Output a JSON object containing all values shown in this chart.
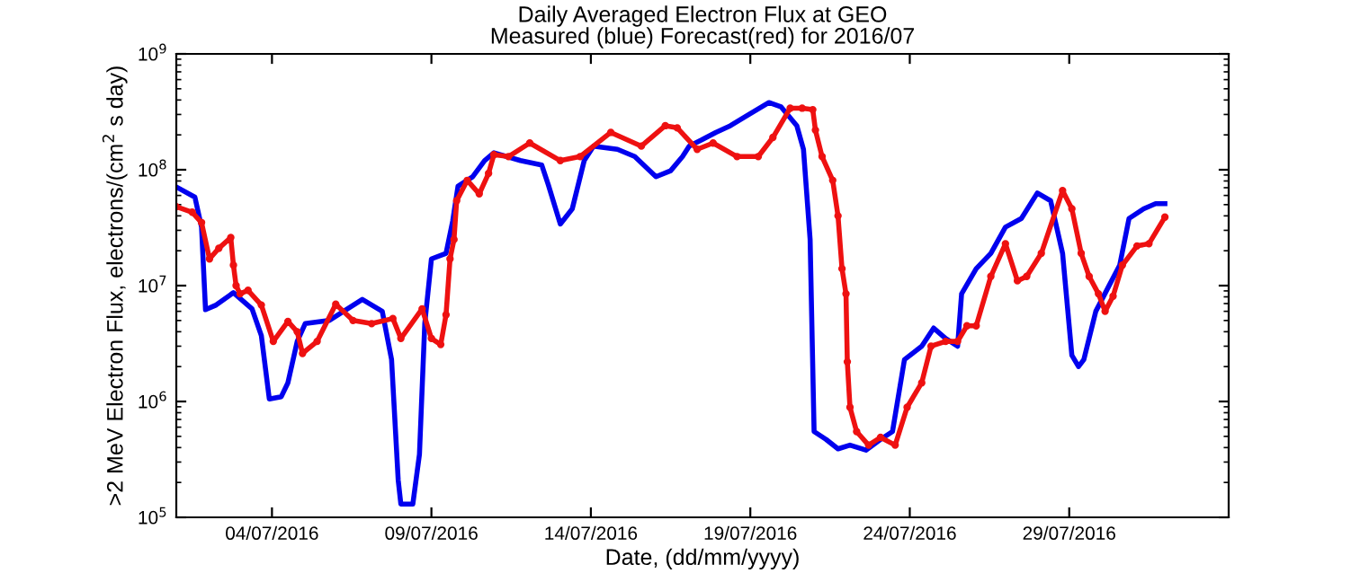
{
  "chart_data": {
    "type": "line",
    "title": "Daily Averaged Electron Flux at GEO",
    "subtitle": "Measured (blue) Forecast(red) for 2016/07",
    "xlabel": "Date, (dd/mm/yyyy)",
    "ylabel": ">2 MeV Electron Flux, electrons/(cm$^{2}$ s day)",
    "log": "y",
    "grid": false,
    "xlim": [
      "2016-07-01",
      "2016-08-03"
    ],
    "xticks": [
      {
        "value": "2016-07-04",
        "label": "04/07/2016"
      },
      {
        "value": "2016-07-09",
        "label": "09/07/2016"
      },
      {
        "value": "2016-07-14",
        "label": "14/07/2016"
      },
      {
        "value": "2016-07-19",
        "label": "19/07/2016"
      },
      {
        "value": "2016-07-24",
        "label": "24/07/2016"
      },
      {
        "value": "2016-07-29",
        "label": "29/07/2016"
      }
    ],
    "ylim": [
      100000,
      1000000000
    ],
    "yticks": [
      {
        "value": 100000,
        "label": "10$^{5}$"
      },
      {
        "value": 1000000,
        "label": "10$^{6}$"
      },
      {
        "value": 10000000,
        "label": "10$^{7}$"
      },
      {
        "value": 100000000,
        "label": "10$^{8}$"
      },
      {
        "value": 1000000000,
        "label": "10$^{9}$"
      }
    ],
    "series": [
      {
        "color": "#0000ee",
        "marker": "none",
        "line_style": "solid",
        "x": [
          "2016-07-01T00:00",
          "2016-07-01T14:00",
          "2016-07-01T19:00",
          "2016-07-01T22:00",
          "2016-07-02T06:00",
          "2016-07-02T19:00",
          "2016-07-03T09:00",
          "2016-07-03T16:00",
          "2016-07-03T22:00",
          "2016-07-04T07:00",
          "2016-07-04T12:00",
          "2016-07-04T19:00",
          "2016-07-05T01:00",
          "2016-07-05T19:00",
          "2016-07-06T20:00",
          "2016-07-07T11:00",
          "2016-07-07T18:00",
          "2016-07-07T23:00",
          "2016-07-08T01:00",
          "2016-07-08T10:00",
          "2016-07-08T15:00",
          "2016-07-08T19:00",
          "2016-07-09T00:00",
          "2016-07-09T11:00",
          "2016-07-09T16:00",
          "2016-07-09T20:00",
          "2016-07-10T07:00",
          "2016-07-10T16:00",
          "2016-07-10T23:00",
          "2016-07-11T19:00",
          "2016-07-12T11:00",
          "2016-07-12T16:00",
          "2016-07-13T01:00",
          "2016-07-13T10:00",
          "2016-07-13T19:00",
          "2016-07-14T02:00",
          "2016-07-14T20:00",
          "2016-07-15T09:00",
          "2016-07-16T01:00",
          "2016-07-16T12:00",
          "2016-07-16T21:00",
          "2016-07-17T02:00",
          "2016-07-17T11:00",
          "2016-07-17T22:00",
          "2016-07-18T09:00",
          "2016-07-18T23:00",
          "2016-07-19T14:00",
          "2016-07-19T23:00",
          "2016-07-20T11:00",
          "2016-07-20T16:00",
          "2016-07-20T21:00",
          "2016-07-21T00:00",
          "2016-07-21T09:00",
          "2016-07-21T18:00",
          "2016-07-22T03:00",
          "2016-07-22T15:00",
          "2016-07-23T02:00",
          "2016-07-23T11:00",
          "2016-07-23T20:00",
          "2016-07-24T09:00",
          "2016-07-24T18:00",
          "2016-07-25T03:00",
          "2016-07-25T12:00",
          "2016-07-25T15:00",
          "2016-07-26T02:00",
          "2016-07-26T13:00",
          "2016-07-27T00:00",
          "2016-07-27T12:00",
          "2016-07-28T00:00",
          "2016-07-28T10:00",
          "2016-07-28T19:00",
          "2016-07-29T02:00",
          "2016-07-29T07:00",
          "2016-07-29T11:00",
          "2016-07-29T20:00",
          "2016-07-30T05:00",
          "2016-07-30T14:00",
          "2016-07-30T21:00",
          "2016-07-31T08:00",
          "2016-07-31T17:00",
          "2016-08-01T00:00"
        ],
        "values": [
          71000000.0,
          58000000.0,
          32000000.0,
          6200000.0,
          6800000.0,
          8700000.0,
          6300000.0,
          3700000.0,
          1050000.0,
          1100000.0,
          1450000.0,
          3300000.0,
          4700000.0,
          5000000.0,
          7600000.0,
          6000000.0,
          2300000.0,
          210000.0,
          130000.0,
          130000.0,
          350000.0,
          4700000.0,
          17000000.0,
          19000000.0,
          36000000.0,
          72000000.0,
          87000000.0,
          120000000.0,
          140000000.0,
          120000000.0,
          110000000.0,
          74000000.0,
          34000000.0,
          46000000.0,
          120000000.0,
          160000000.0,
          150000000.0,
          130000000.0,
          87000000.0,
          98000000.0,
          130000000.0,
          160000000.0,
          180000000.0,
          210000000.0,
          240000000.0,
          300000000.0,
          380000000.0,
          350000000.0,
          240000000.0,
          150000000.0,
          25000000.0,
          550000.0,
          470000.0,
          390000.0,
          420000.0,
          380000.0,
          470000.0,
          550000.0,
          2300000.0,
          3000000.0,
          4300000.0,
          3500000.0,
          3000000.0,
          8500000.0,
          14000000.0,
          19000000.0,
          32000000.0,
          38000000.0,
          63000000.0,
          54000000.0,
          19000000.0,
          2500000.0,
          2000000.0,
          2300000.0,
          6000000.0,
          9500000.0,
          15000000.0,
          38000000.0,
          46000000.0,
          51000000.0,
          51000000.0
        ]
      },
      {
        "color": "#ee1111",
        "marker": "circle",
        "line_style": "solid",
        "x": [
          "2016-07-01T00:00",
          "2016-07-01T12:00",
          "2016-07-01T19:00",
          "2016-07-02T01:00",
          "2016-07-02T08:00",
          "2016-07-02T17:00",
          "2016-07-02T19:00",
          "2016-07-02T21:00",
          "2016-07-03T00:00",
          "2016-07-03T06:00",
          "2016-07-03T16:00",
          "2016-07-04T01:00",
          "2016-07-04T12:00",
          "2016-07-04T19:00",
          "2016-07-04T23:00",
          "2016-07-05T10:00",
          "2016-07-06T00:00",
          "2016-07-06T13:00",
          "2016-07-07T03:00",
          "2016-07-07T19:00",
          "2016-07-08T01:00",
          "2016-07-08T17:00",
          "2016-07-09T00:00",
          "2016-07-09T07:00",
          "2016-07-09T11:00",
          "2016-07-09T14:00",
          "2016-07-09T17:00",
          "2016-07-09T19:00",
          "2016-07-10T03:00",
          "2016-07-10T12:00",
          "2016-07-10T19:00",
          "2016-07-10T23:00",
          "2016-07-11T10:00",
          "2016-07-12T02:00",
          "2016-07-13T01:00",
          "2016-07-13T16:00",
          "2016-07-14T15:00",
          "2016-07-15T14:00",
          "2016-07-16T08:00",
          "2016-07-16T17:00",
          "2016-07-17T08:00",
          "2016-07-17T20:00",
          "2016-07-18T14:00",
          "2016-07-19T06:00",
          "2016-07-19T17:00",
          "2016-07-20T06:00",
          "2016-07-20T15:00",
          "2016-07-20T23:00",
          "2016-07-21T01:00",
          "2016-07-21T06:00",
          "2016-07-21T14:00",
          "2016-07-21T18:00",
          "2016-07-21T21:00",
          "2016-07-22T00:00",
          "2016-07-22T01:00",
          "2016-07-22T03:00",
          "2016-07-22T08:00",
          "2016-07-22T17:00",
          "2016-07-23T02:00",
          "2016-07-23T13:00",
          "2016-07-23T22:00",
          "2016-07-24T09:00",
          "2016-07-24T16:00",
          "2016-07-25T03:00",
          "2016-07-25T12:00",
          "2016-07-25T19:00",
          "2016-07-26T02:00",
          "2016-07-26T13:00",
          "2016-07-27T00:00",
          "2016-07-27T09:00",
          "2016-07-27T16:00",
          "2016-07-28T03:00",
          "2016-07-28T19:00",
          "2016-07-29T02:00",
          "2016-07-29T09:00",
          "2016-07-29T15:00",
          "2016-07-29T22:00",
          "2016-07-30T03:00",
          "2016-07-30T09:00",
          "2016-07-30T16:00",
          "2016-07-31T03:00",
          "2016-07-31T12:00",
          "2016-08-01T00:00"
        ],
        "values": [
          48000000.0,
          43000000.0,
          35000000.0,
          17000000.0,
          21000000.0,
          26000000.0,
          15000000.0,
          10000000.0,
          8500000.0,
          9100000.0,
          6800000.0,
          3300000.0,
          4900000.0,
          4000000.0,
          2600000.0,
          3300000.0,
          6900000.0,
          5000000.0,
          4700000.0,
          5200000.0,
          3500000.0,
          6300000.0,
          3500000.0,
          3100000.0,
          5600000.0,
          17000000.0,
          25000000.0,
          54000000.0,
          81000000.0,
          62000000.0,
          93000000.0,
          135000000.0,
          130000000.0,
          170000000.0,
          120000000.0,
          130000000.0,
          210000000.0,
          160000000.0,
          240000000.0,
          230000000.0,
          150000000.0,
          170000000.0,
          130000000.0,
          130000000.0,
          190000000.0,
          340000000.0,
          340000000.0,
          330000000.0,
          220000000.0,
          130000000.0,
          81000000.0,
          40000000.0,
          14000000.0,
          8500000.0,
          2200000.0,
          890000.0,
          550000.0,
          420000.0,
          490000.0,
          420000.0,
          890000.0,
          1450000.0,
          3000000.0,
          3300000.0,
          3300000.0,
          4500000.0,
          4500000.0,
          12000000.0,
          23000000.0,
          11000000.0,
          12000000.0,
          19000000.0,
          66000000.0,
          46000000.0,
          19000000.0,
          12000000.0,
          8500000.0,
          6000000.0,
          8100000.0,
          15000000.0,
          22000000.0,
          23000000.0,
          39000000.0
        ]
      }
    ]
  }
}
